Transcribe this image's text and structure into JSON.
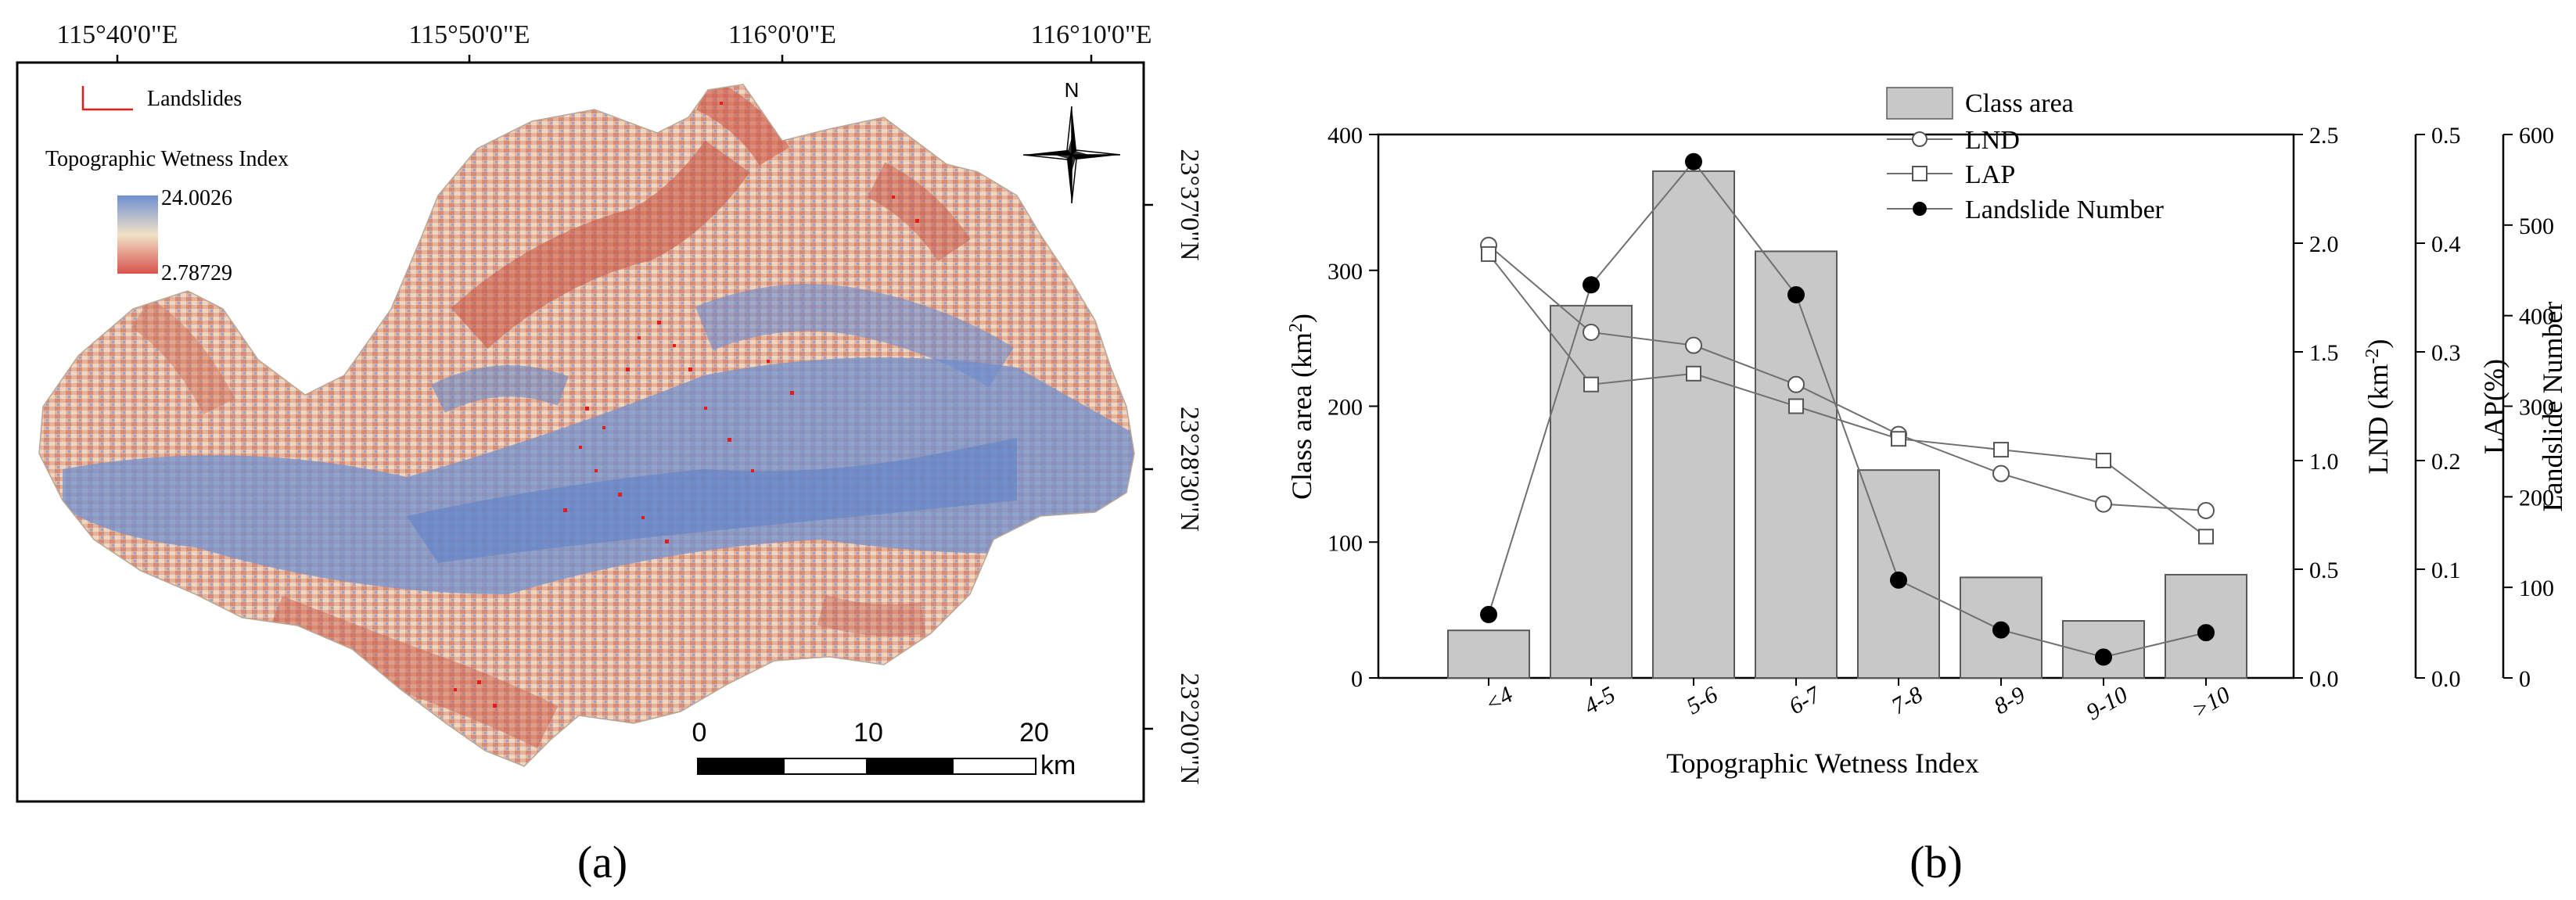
{
  "colors": {
    "frame": "#000000",
    "bar_fill": "#c8c8c8",
    "bar_stroke": "#5a5a5a",
    "line": "#707070",
    "map_low": "#d9534a",
    "map_mid": "#f1e2c8",
    "map_high": "#6f8fd0",
    "landslide": "#e41a1c"
  },
  "map": {
    "panel_label": "(a)",
    "legend": {
      "landslides_label": "Landslides",
      "index_title": "Topographic Wetness Index",
      "max_value": "24.0026",
      "min_value": "2.78729"
    },
    "lon_ticks": [
      "115°40'0\"E",
      "115°50'0\"E",
      "116°0'0\"E",
      "116°10'0\"E"
    ],
    "lat_ticks": [
      "23°37'0\"N",
      "23°28'30\"N",
      "23°20'0\"N"
    ],
    "north_label": "N",
    "scale": {
      "ticks": [
        "0",
        "10",
        "20"
      ],
      "unit": "km"
    }
  },
  "chart": {
    "panel_label": "(b)",
    "legend": [
      "Class area",
      "LND",
      "LAP",
      "Landslide Number"
    ]
  },
  "chart_data": {
    "type": "bar",
    "title": "",
    "xlabel": "Topographic Wetness Index",
    "categories": [
      "<4",
      "4-5",
      "5-6",
      "6-7",
      "7-8",
      "8-9",
      "9-10",
      ">10"
    ],
    "series": [
      {
        "name": "Class area",
        "type": "bar",
        "axis": "Class area (km²)",
        "values": [
          35,
          274,
          373,
          314,
          153,
          74,
          42,
          76
        ]
      },
      {
        "name": "LND",
        "type": "line",
        "marker": "open-circle",
        "axis": "LND (km⁻²)",
        "values": [
          1.99,
          1.59,
          1.53,
          1.35,
          1.12,
          0.94,
          0.8,
          0.77
        ]
      },
      {
        "name": "LAP",
        "type": "line",
        "marker": "open-square",
        "axis": "LAP(%)",
        "values": [
          0.39,
          0.27,
          0.28,
          0.25,
          0.22,
          0.21,
          0.2,
          0.13
        ]
      },
      {
        "name": "Landslide Number",
        "type": "line",
        "marker": "filled-circle",
        "axis": "Landslide Number",
        "values": [
          70,
          434,
          570,
          423,
          108,
          53,
          23,
          50
        ]
      }
    ],
    "axes": [
      {
        "label": "Class area (km²)",
        "label_base": "Class area (km",
        "label_sup": "2",
        "label_end": ")",
        "range": [
          0,
          400
        ],
        "ticks": [
          "0",
          "100",
          "200",
          "300",
          "400"
        ]
      },
      {
        "label": "LND (km⁻²)",
        "label_base": "LND (km",
        "label_sup": "-2",
        "label_end": ")",
        "range": [
          0,
          2.5
        ],
        "ticks": [
          "0.0",
          "0.5",
          "1.0",
          "1.5",
          "2.0",
          "2.5"
        ]
      },
      {
        "label": "LAP(%)",
        "range": [
          0,
          0.5
        ],
        "ticks": [
          "0.0",
          "0.1",
          "0.2",
          "0.3",
          "0.4",
          "0.5"
        ]
      },
      {
        "label": "Landslide Number",
        "range": [
          0,
          600
        ],
        "ticks": [
          "0",
          "100",
          "200",
          "300",
          "400",
          "500",
          "600"
        ]
      }
    ]
  }
}
